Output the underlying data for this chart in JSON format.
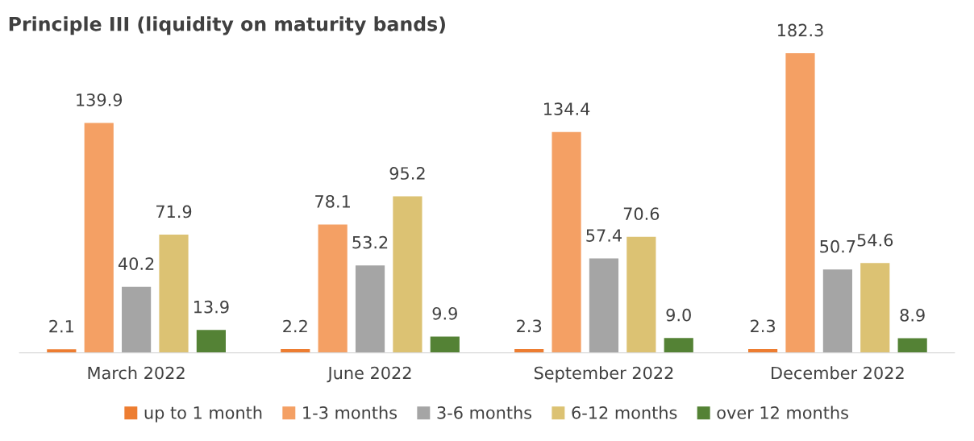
{
  "chart_data": {
    "type": "bar",
    "title": "Principle III (liquidity on maturity bands)",
    "categories": [
      "March 2022",
      "June 2022",
      "September 2022",
      "December 2022"
    ],
    "series": [
      {
        "name": "up to 1 month",
        "color": "#ed7d31",
        "values": [
          2.1,
          2.2,
          2.3,
          2.3
        ]
      },
      {
        "name": "1-3 months",
        "color": "#f4a064",
        "values": [
          139.9,
          78.1,
          134.4,
          182.3
        ]
      },
      {
        "name": "3-6 months",
        "color": "#a5a5a5",
        "values": [
          40.2,
          53.2,
          57.4,
          50.7
        ]
      },
      {
        "name": "6-12 months",
        "color": "#dcc273",
        "values": [
          71.9,
          95.2,
          70.6,
          54.6
        ]
      },
      {
        "name": "over 12 months",
        "color": "#548235",
        "values": [
          13.9,
          9.9,
          9.0,
          8.9
        ],
        "value_labels": [
          "13.9",
          "9.9",
          "9.0",
          "8.9"
        ]
      }
    ],
    "data_labels": true,
    "legend": "bottom",
    "grid": false
  }
}
